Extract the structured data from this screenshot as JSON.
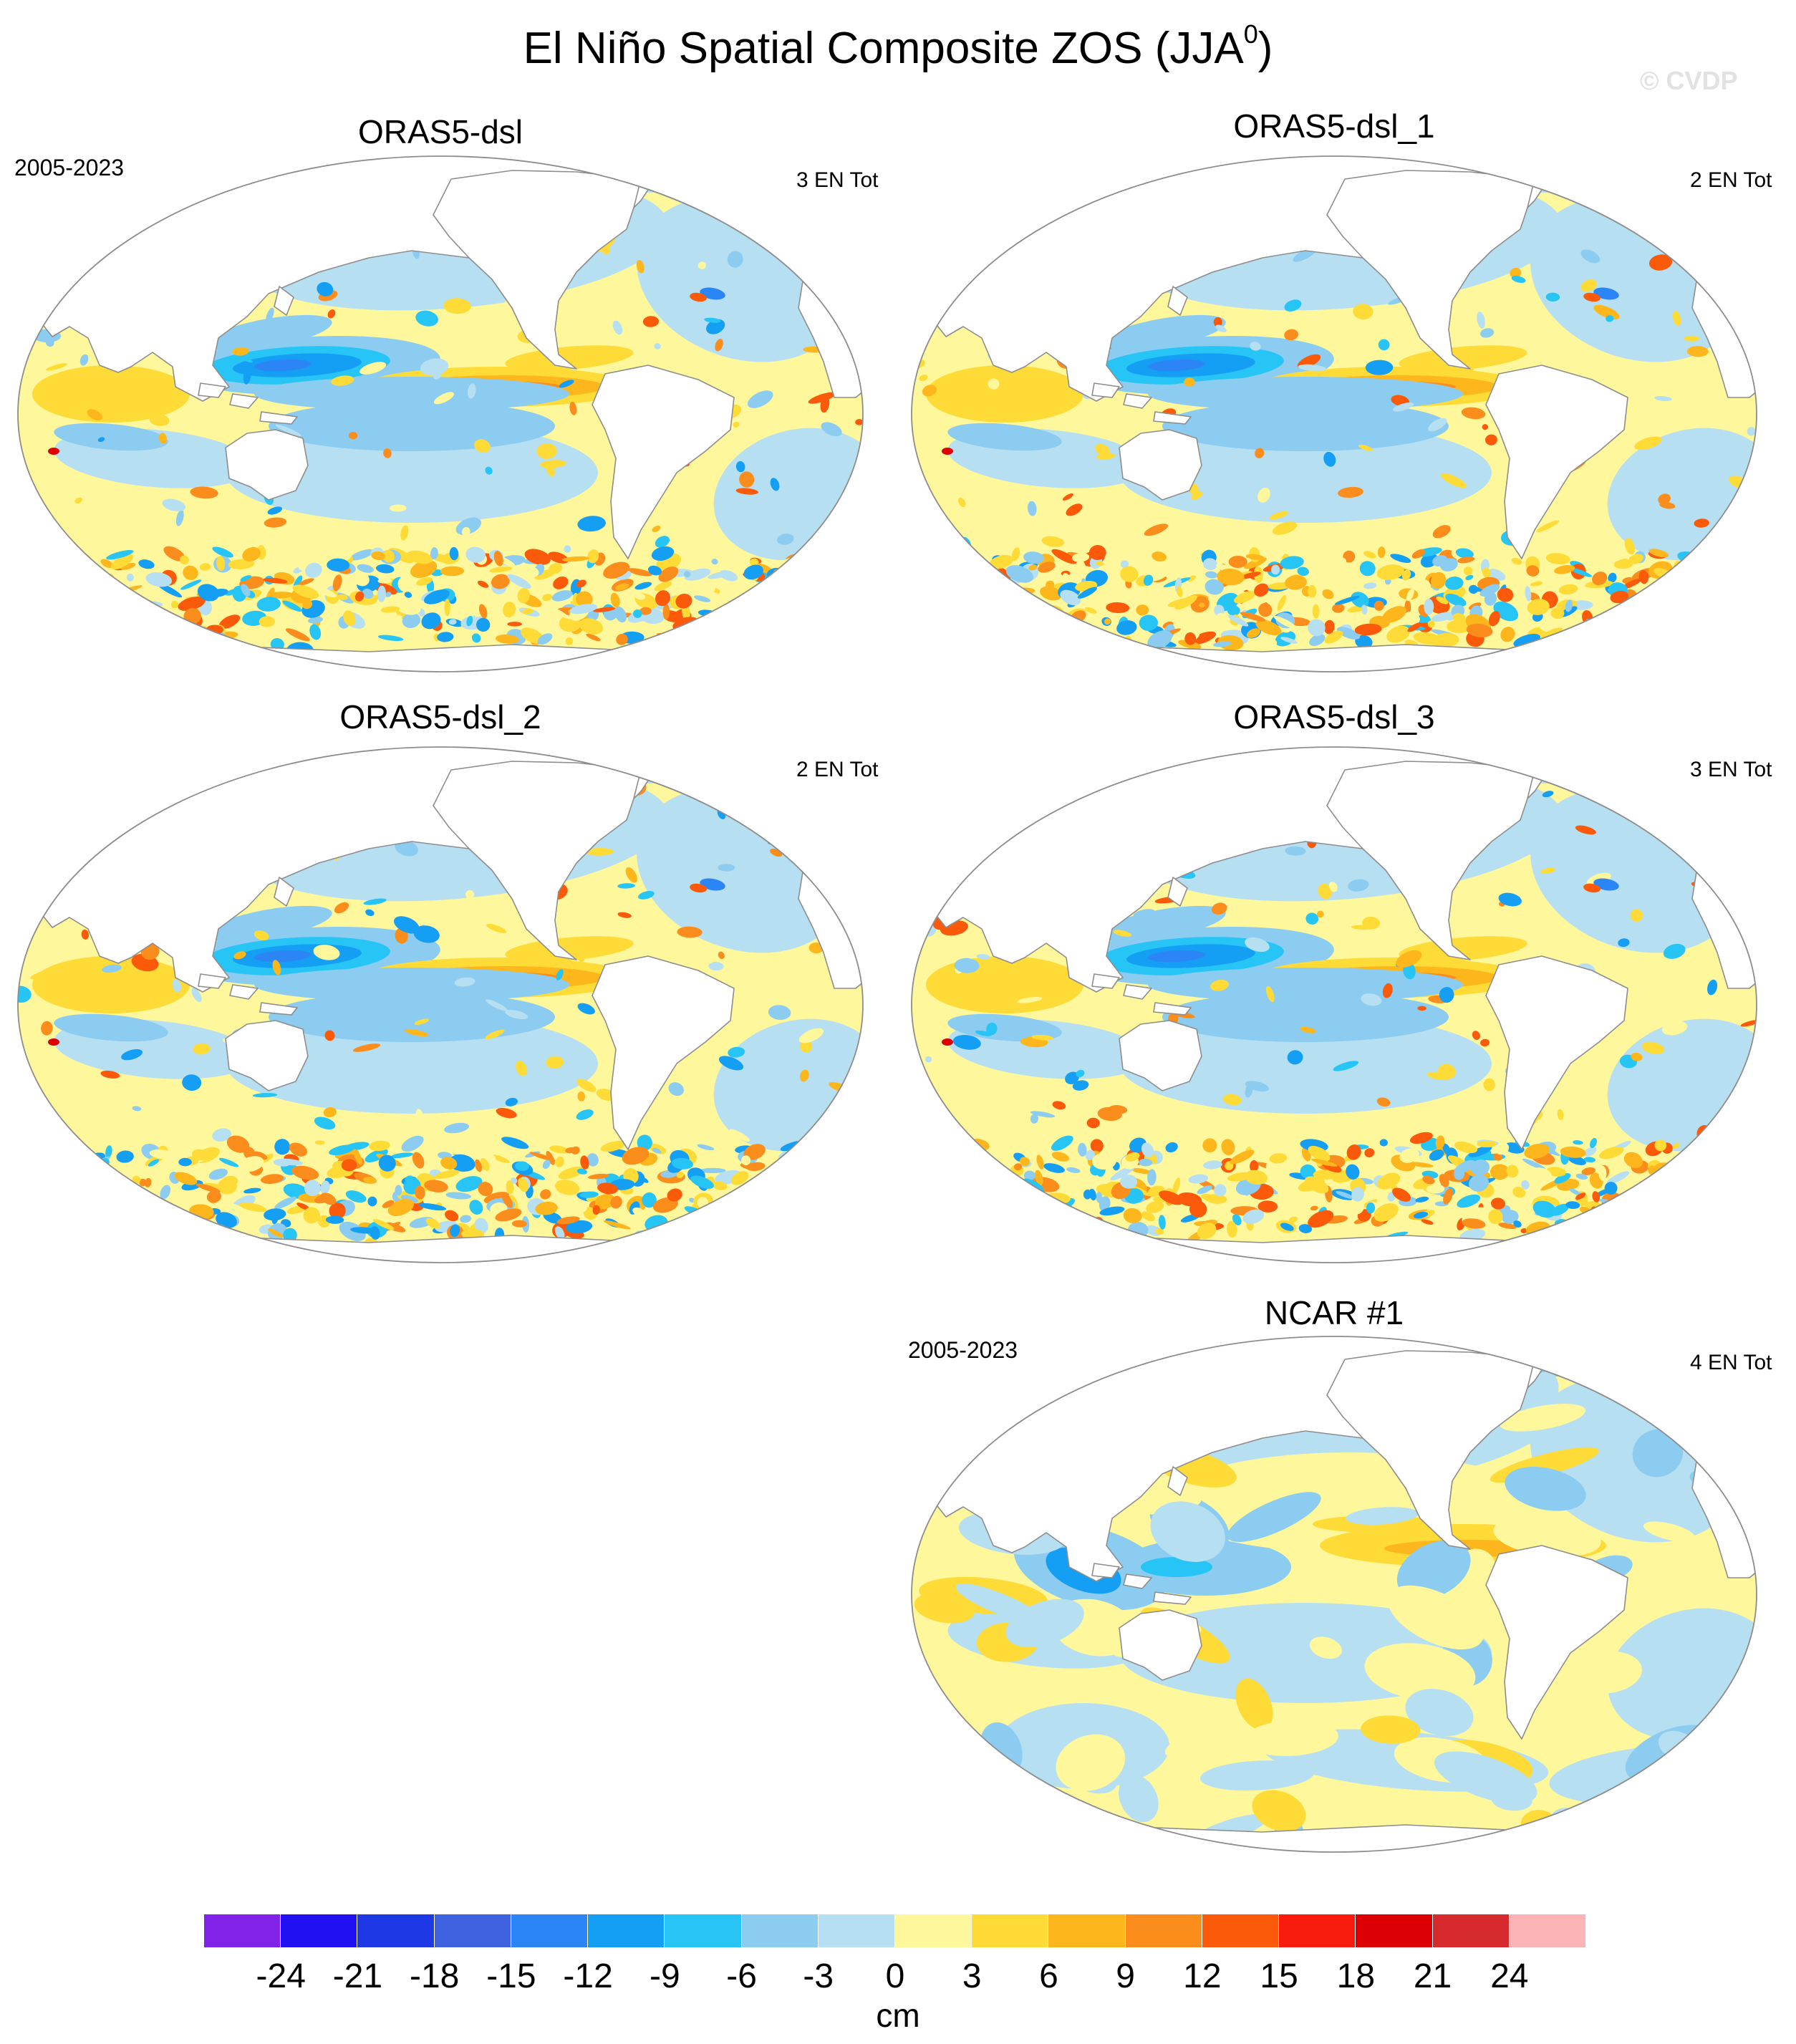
{
  "title": {
    "main": "El Niño Spatial Composite ZOS (JJA",
    "superscript": "0",
    "closing": ")"
  },
  "watermark": "© CVDP",
  "panels": [
    {
      "title": "ORAS5-dsl",
      "left_label": "2005-2023",
      "right_label": "3 EN Tot",
      "style": "ocean-reanalysis"
    },
    {
      "title": "ORAS5-dsl_1",
      "left_label": "",
      "right_label": "2 EN Tot",
      "style": "ocean-reanalysis"
    },
    {
      "title": "ORAS5-dsl_2",
      "left_label": "",
      "right_label": "2 EN Tot",
      "style": "ocean-reanalysis"
    },
    {
      "title": "ORAS5-dsl_3",
      "left_label": "",
      "right_label": "3 EN Tot",
      "style": "ocean-reanalysis"
    },
    {
      "title": "NCAR #1",
      "left_label": "2005-2023",
      "right_label": "4 EN Tot",
      "style": "model"
    }
  ],
  "colorbar": {
    "units": "cm",
    "tick_labels": [
      "-24",
      "-21",
      "-18",
      "-15",
      "-12",
      "-9",
      "-6",
      "-3",
      "0",
      "3",
      "6",
      "9",
      "12",
      "15",
      "18",
      "21",
      "24"
    ],
    "colors": [
      "#8122e8",
      "#2111f2",
      "#1e38e6",
      "#3e62e0",
      "#2b85f5",
      "#149ff5",
      "#27c4f6",
      "#8cccf0",
      "#b7dff2",
      "#fff79c",
      "#fedb37",
      "#fdb61c",
      "#fb8d1c",
      "#fa5a0a",
      "#f91c0e",
      "#dc0005",
      "#d62a2e",
      "#fcb4b7"
    ]
  }
}
